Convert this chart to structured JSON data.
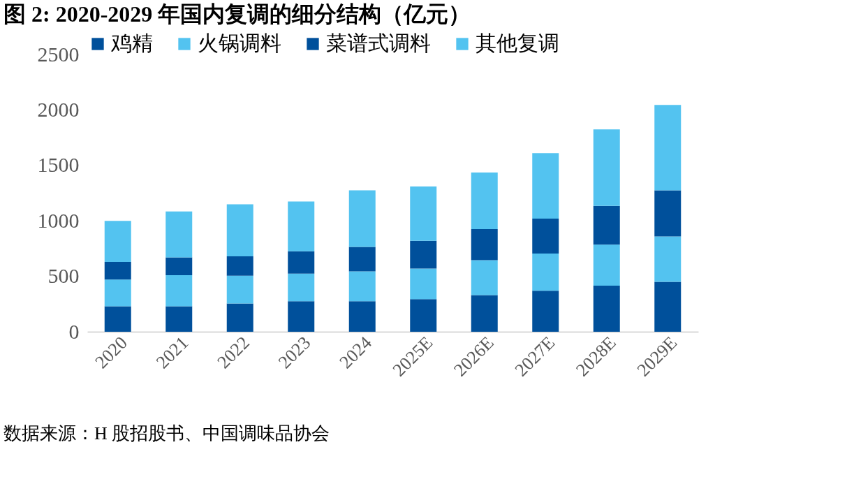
{
  "chart_data": {
    "type": "bar",
    "stacked": true,
    "title": "图 2:  2020-2029 年国内复调的细分结构（亿元）",
    "categories": [
      "2020",
      "2021",
      "2022",
      "2023",
      "2024",
      "2025E",
      "2026E",
      "2027E",
      "2028E",
      "2029E"
    ],
    "series": [
      {
        "name": "鸡精",
        "color": "#00509b",
        "values": [
          230,
          230,
          255,
          275,
          275,
          295,
          330,
          370,
          415,
          450
        ]
      },
      {
        "name": "火锅调料",
        "color": "#53c3f0",
        "values": [
          240,
          280,
          250,
          250,
          270,
          275,
          315,
          335,
          370,
          410
        ]
      },
      {
        "name": "菜谱式调料",
        "color": "#00509b",
        "values": [
          160,
          160,
          175,
          200,
          220,
          250,
          280,
          315,
          350,
          415
        ]
      },
      {
        "name": "其他复调",
        "color": "#53c3f0",
        "values": [
          370,
          415,
          470,
          450,
          510,
          490,
          510,
          590,
          690,
          770
        ]
      }
    ],
    "ylim": [
      0,
      2500
    ],
    "yticks": [
      0,
      500,
      1000,
      1500,
      2000,
      2500
    ],
    "grid": false,
    "legend": "top",
    "annotations": [
      "数据来源：H 股招股书、中国调味品协会"
    ]
  }
}
